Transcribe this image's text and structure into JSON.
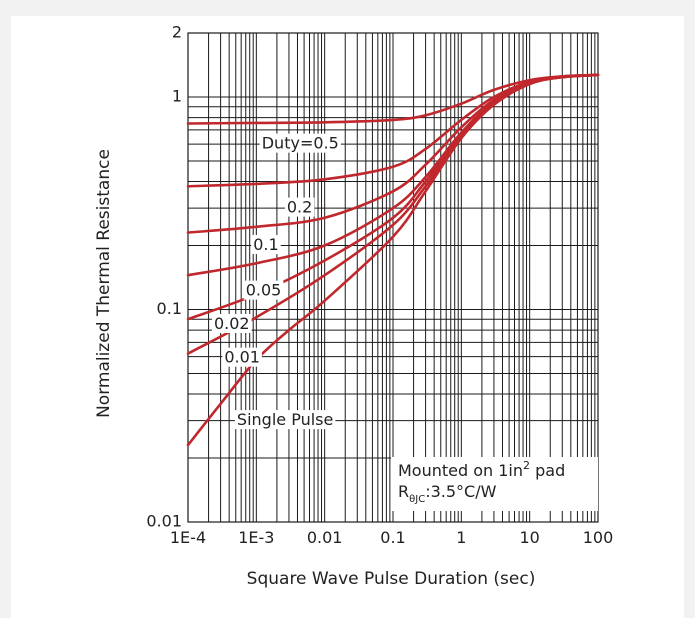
{
  "chart_data": {
    "type": "line",
    "xlabel": "Square Wave Pulse Duration (sec)",
    "ylabel": "Normalized Thermal Resistance",
    "x_scale": "log",
    "y_scale": "log",
    "xlim": [
      0.0001,
      100
    ],
    "ylim": [
      0.01,
      2
    ],
    "x_ticks": [
      {
        "value": 0.0001,
        "label": "1E-4"
      },
      {
        "value": 0.001,
        "label": "1E-3"
      },
      {
        "value": 0.01,
        "label": "0.01"
      },
      {
        "value": 0.1,
        "label": "0.1"
      },
      {
        "value": 1,
        "label": "1"
      },
      {
        "value": 10,
        "label": "10"
      },
      {
        "value": 100,
        "label": "100"
      }
    ],
    "y_ticks": [
      {
        "value": 0.01,
        "label": "0.01"
      },
      {
        "value": 0.1,
        "label": "0.1"
      },
      {
        "value": 1,
        "label": "1"
      },
      {
        "value": 2,
        "label": "2"
      }
    ],
    "grid": true,
    "line_color": "#c0282d",
    "series": [
      {
        "name": "Duty=0.5",
        "label_at": [
          0.0012,
          0.6
        ],
        "x": [
          0.0001,
          0.001,
          0.01,
          0.1,
          0.3,
          1,
          3,
          10,
          30,
          100
        ],
        "y": [
          0.75,
          0.755,
          0.76,
          0.78,
          0.82,
          0.93,
          1.08,
          1.2,
          1.25,
          1.27
        ]
      },
      {
        "name": "0.2",
        "label_at": [
          0.0028,
          0.3
        ],
        "x": [
          0.0001,
          0.001,
          0.01,
          0.1,
          0.3,
          1,
          3,
          10,
          30,
          100
        ],
        "y": [
          0.38,
          0.39,
          0.41,
          0.47,
          0.57,
          0.78,
          1.0,
          1.18,
          1.25,
          1.27
        ]
      },
      {
        "name": "0.1",
        "label_at": [
          0.0009,
          0.2
        ],
        "x": [
          0.0001,
          0.001,
          0.01,
          0.1,
          0.3,
          1,
          3,
          10,
          30,
          100
        ],
        "y": [
          0.23,
          0.245,
          0.27,
          0.36,
          0.48,
          0.72,
          0.97,
          1.17,
          1.24,
          1.27
        ]
      },
      {
        "name": "0.05",
        "label_at": [
          0.0007,
          0.122
        ],
        "x": [
          0.0001,
          0.001,
          0.01,
          0.1,
          0.3,
          1,
          3,
          10,
          30,
          100
        ],
        "y": [
          0.145,
          0.165,
          0.2,
          0.3,
          0.42,
          0.68,
          0.95,
          1.16,
          1.24,
          1.27
        ]
      },
      {
        "name": "0.02",
        "label_at": [
          0.00024,
          0.085
        ],
        "x": [
          0.0001,
          0.001,
          0.01,
          0.1,
          0.3,
          1,
          3,
          10,
          30,
          100
        ],
        "y": [
          0.09,
          0.118,
          0.17,
          0.27,
          0.4,
          0.66,
          0.94,
          1.16,
          1.24,
          1.27
        ]
      },
      {
        "name": "0.01",
        "label_at": [
          0.00034,
          0.059
        ],
        "x": [
          0.0001,
          0.001,
          0.01,
          0.1,
          0.3,
          1,
          3,
          10,
          30,
          100
        ],
        "y": [
          0.062,
          0.092,
          0.145,
          0.25,
          0.38,
          0.65,
          0.93,
          1.16,
          1.24,
          1.27
        ]
      },
      {
        "name": "Single Pulse",
        "label_at": [
          0.00052,
          0.03
        ],
        "x": [
          0.0001,
          0.0003,
          0.001,
          0.003,
          0.01,
          0.1,
          0.3,
          1,
          3,
          10,
          30,
          100
        ],
        "y": [
          0.023,
          0.036,
          0.058,
          0.08,
          0.11,
          0.22,
          0.36,
          0.64,
          0.92,
          1.15,
          1.24,
          1.27
        ]
      }
    ],
    "annotation": {
      "line1": "Mounted on 1in",
      "line1_sup": "2",
      "line1_end": " pad",
      "line2_main": "R",
      "line2_sub": "θJC",
      "line2_end": ":3.5°C/W"
    }
  }
}
